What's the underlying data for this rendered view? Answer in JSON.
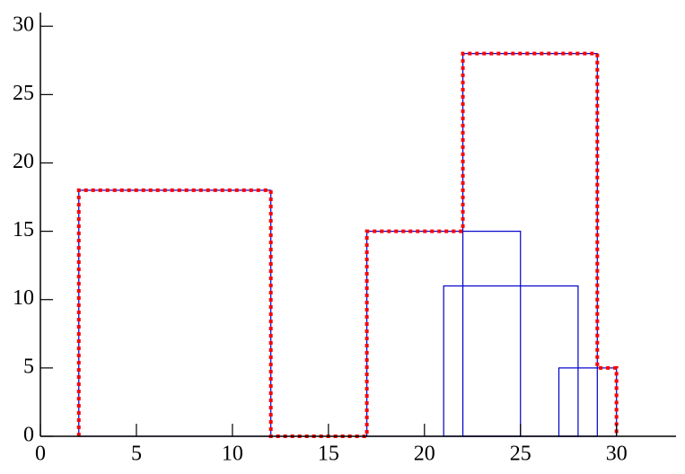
{
  "chart_data": {
    "type": "boxes",
    "boxes": {
      "x0": [
        2,
        17,
        22,
        21,
        27
      ],
      "x1": [
        12,
        25,
        29,
        28,
        30
      ],
      "height": [
        18,
        15,
        28,
        11,
        5
      ],
      "color": "#0000cc"
    },
    "envelope": {
      "x": [
        2,
        2,
        12,
        12,
        17,
        17,
        22,
        22,
        29,
        29,
        30,
        30
      ],
      "y": [
        0,
        18,
        18,
        0,
        0,
        15,
        15,
        28,
        28,
        5,
        5,
        0
      ],
      "color": "#ff0000"
    },
    "xlim": [
      0,
      33.1
    ],
    "ylim": [
      0,
      31
    ],
    "xticks": [
      0,
      5,
      10,
      15,
      20,
      25,
      30
    ],
    "yticks": [
      0,
      5,
      10,
      15,
      20,
      25,
      30
    ]
  }
}
